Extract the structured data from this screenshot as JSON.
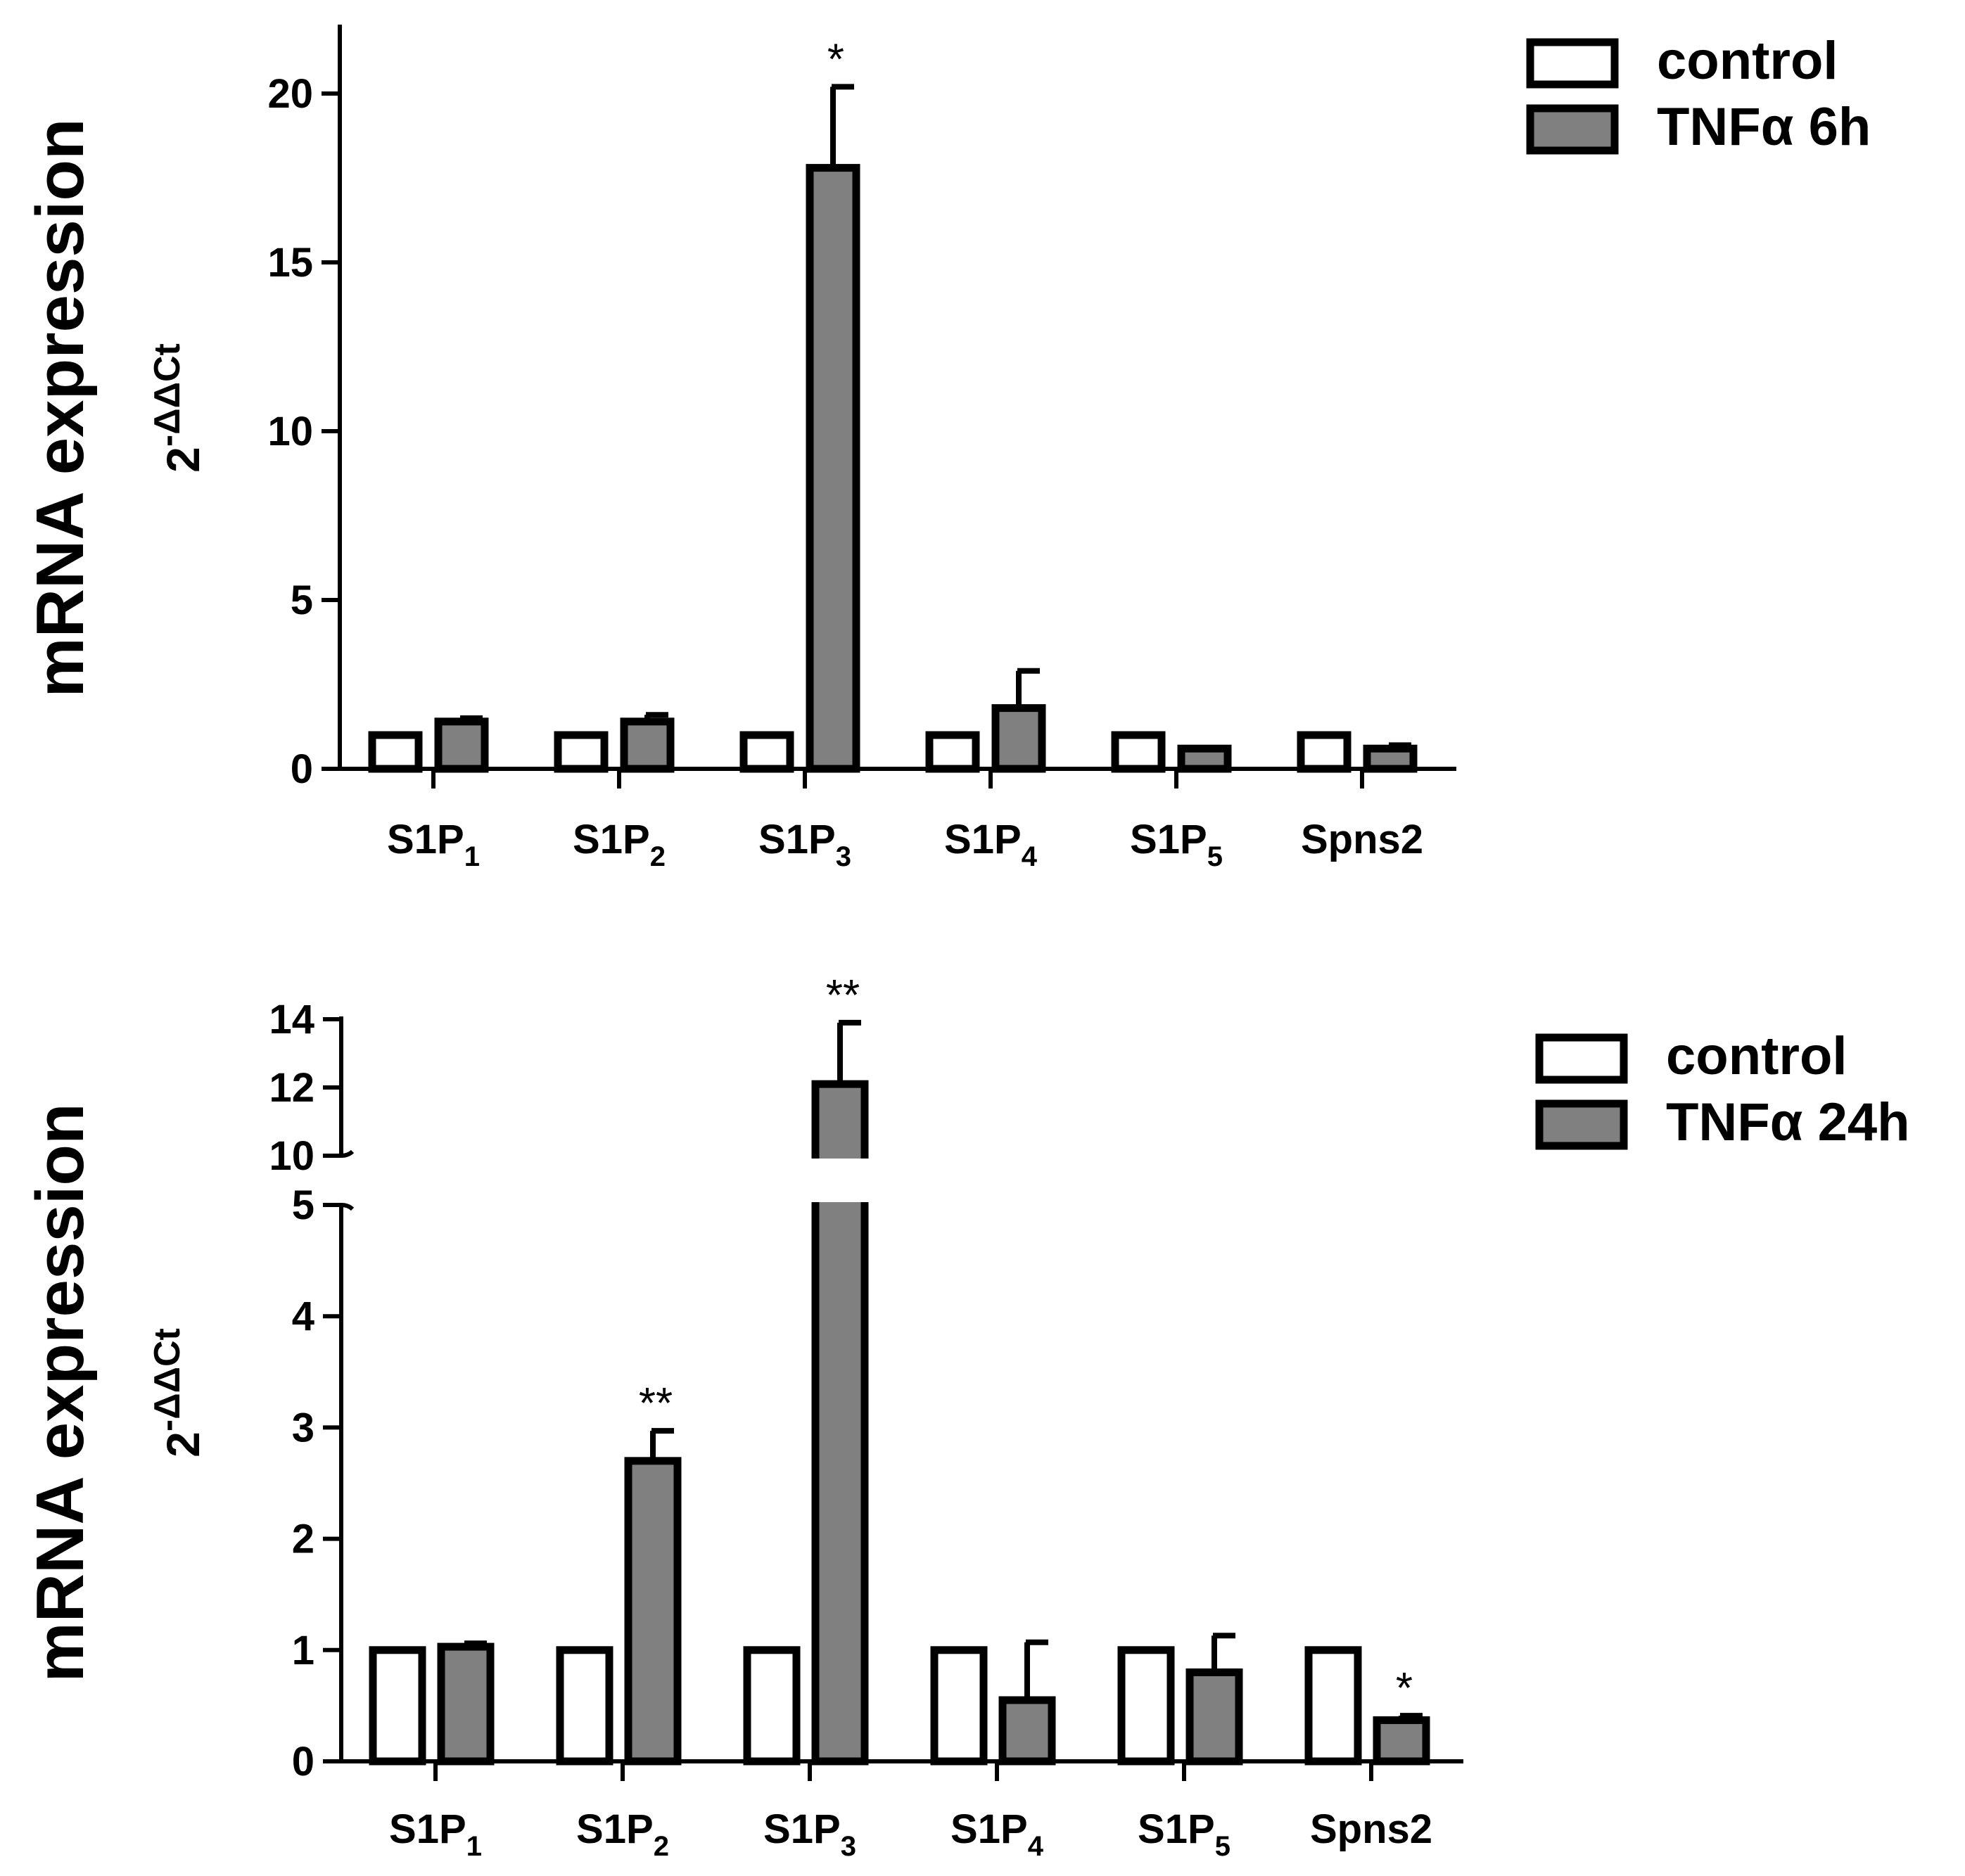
{
  "figure_title": "",
  "chart_data": [
    {
      "type": "bar",
      "title": "",
      "ylabel": "mRNA expression",
      "ylabel2_base": "2",
      "ylabel2_exp": "-ΔΔCt",
      "xlabel": "",
      "categories": [
        {
          "base": "S1P",
          "sub": "1"
        },
        {
          "base": "S1P",
          "sub": "2"
        },
        {
          "base": "S1P",
          "sub": "3"
        },
        {
          "base": "S1P",
          "sub": "4"
        },
        {
          "base": "S1P",
          "sub": "5"
        },
        {
          "base": "Spns2",
          "sub": ""
        }
      ],
      "ylim": [
        0,
        22
      ],
      "yticks": [
        0,
        5,
        10,
        15,
        20
      ],
      "axis_break": null,
      "series": [
        {
          "name": "control",
          "color": "#ffffff",
          "values": [
            1,
            1,
            1,
            1,
            1,
            1
          ],
          "errors": [
            0,
            0,
            0,
            0,
            0,
            0
          ]
        },
        {
          "name": "TNFα 6h",
          "color": "#808080",
          "values": [
            1.4,
            1.4,
            17.8,
            1.8,
            0.6,
            0.6
          ],
          "errors": [
            0.1,
            0.2,
            2.4,
            1.1,
            0.0,
            0.1
          ]
        }
      ],
      "significance": [
        {
          "category_index": 2,
          "label": "*"
        }
      ],
      "legend_position": "top-right"
    },
    {
      "type": "bar",
      "title": "",
      "ylabel": "mRNA expression",
      "ylabel2_base": "2",
      "ylabel2_exp": "-ΔΔCt",
      "xlabel": "",
      "categories": [
        {
          "base": "S1P",
          "sub": "1"
        },
        {
          "base": "S1P",
          "sub": "2"
        },
        {
          "base": "S1P",
          "sub": "3"
        },
        {
          "base": "S1P",
          "sub": "4"
        },
        {
          "base": "S1P",
          "sub": "5"
        },
        {
          "base": "Spns2",
          "sub": ""
        }
      ],
      "ylim": [
        0,
        14
      ],
      "yticks": [
        0,
        1,
        2,
        3,
        4,
        5,
        10,
        12,
        14
      ],
      "axis_break": {
        "lower": 5,
        "upper": 10
      },
      "series": [
        {
          "name": "control",
          "color": "#ffffff",
          "values": [
            1,
            1,
            1,
            1,
            1,
            1
          ],
          "errors": [
            0,
            0,
            0,
            0,
            0,
            0
          ]
        },
        {
          "name": "TNFα 24h",
          "color": "#808080",
          "values": [
            1.03,
            2.7,
            12.1,
            0.55,
            0.8,
            0.37
          ],
          "errors": [
            0.03,
            0.27,
            1.8,
            0.52,
            0.33,
            0.04
          ]
        }
      ],
      "significance": [
        {
          "category_index": 1,
          "label": "**"
        },
        {
          "category_index": 2,
          "label": "**"
        },
        {
          "category_index": 5,
          "label": "*"
        }
      ],
      "legend_position": "top-right"
    }
  ]
}
